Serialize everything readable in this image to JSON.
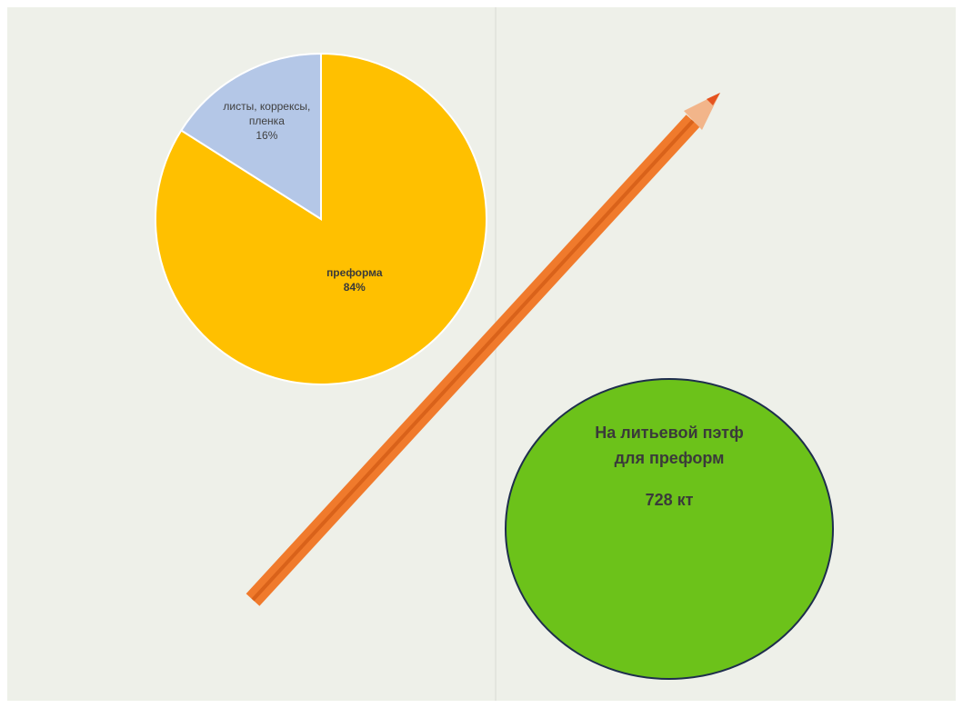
{
  "chart_data": {
    "type": "pie",
    "categories": [
      "преформа",
      "листы, коррексы, пленка"
    ],
    "values": [
      84,
      16
    ],
    "value_labels": [
      "84%",
      "16%"
    ],
    "colors": [
      "#ffc000",
      "#b4c7e7"
    ],
    "annotations": [
      "На литьевой пэтф для преформ",
      "728 кт"
    ]
  }
}
